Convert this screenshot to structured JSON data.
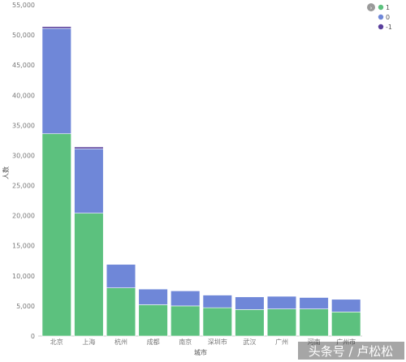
{
  "chart_data": {
    "type": "bar",
    "stacked": true,
    "categories": [
      "北京",
      "上海",
      "杭州",
      "成都",
      "南京",
      "深圳市",
      "武汉",
      "广州",
      "河南",
      "广州市"
    ],
    "series": [
      {
        "name": "1",
        "color": "#5cc17e",
        "values": [
          33600,
          20400,
          8000,
          5200,
          5000,
          4700,
          4400,
          4500,
          4500,
          4000
        ]
      },
      {
        "name": "0",
        "color": "#6f87d8",
        "values": [
          17500,
          10700,
          3900,
          2600,
          2500,
          2100,
          2100,
          2100,
          1900,
          2100
        ]
      },
      {
        "name": "-1",
        "color": "#5a3f9c",
        "values": [
          300,
          300,
          0,
          0,
          0,
          0,
          0,
          0,
          0,
          0
        ]
      }
    ],
    "ylim": [
      0,
      55000
    ],
    "yticks": [
      "0",
      "5,000",
      "10,000",
      "15,000",
      "20,000",
      "25,000",
      "30,000",
      "35,000",
      "40,000",
      "45,000",
      "50,000",
      "55,000"
    ],
    "xlabel": "城市",
    "ylabel": "人数",
    "grid": false,
    "legend_position": "top-right"
  },
  "watermark": "头条号 / 卢松松"
}
